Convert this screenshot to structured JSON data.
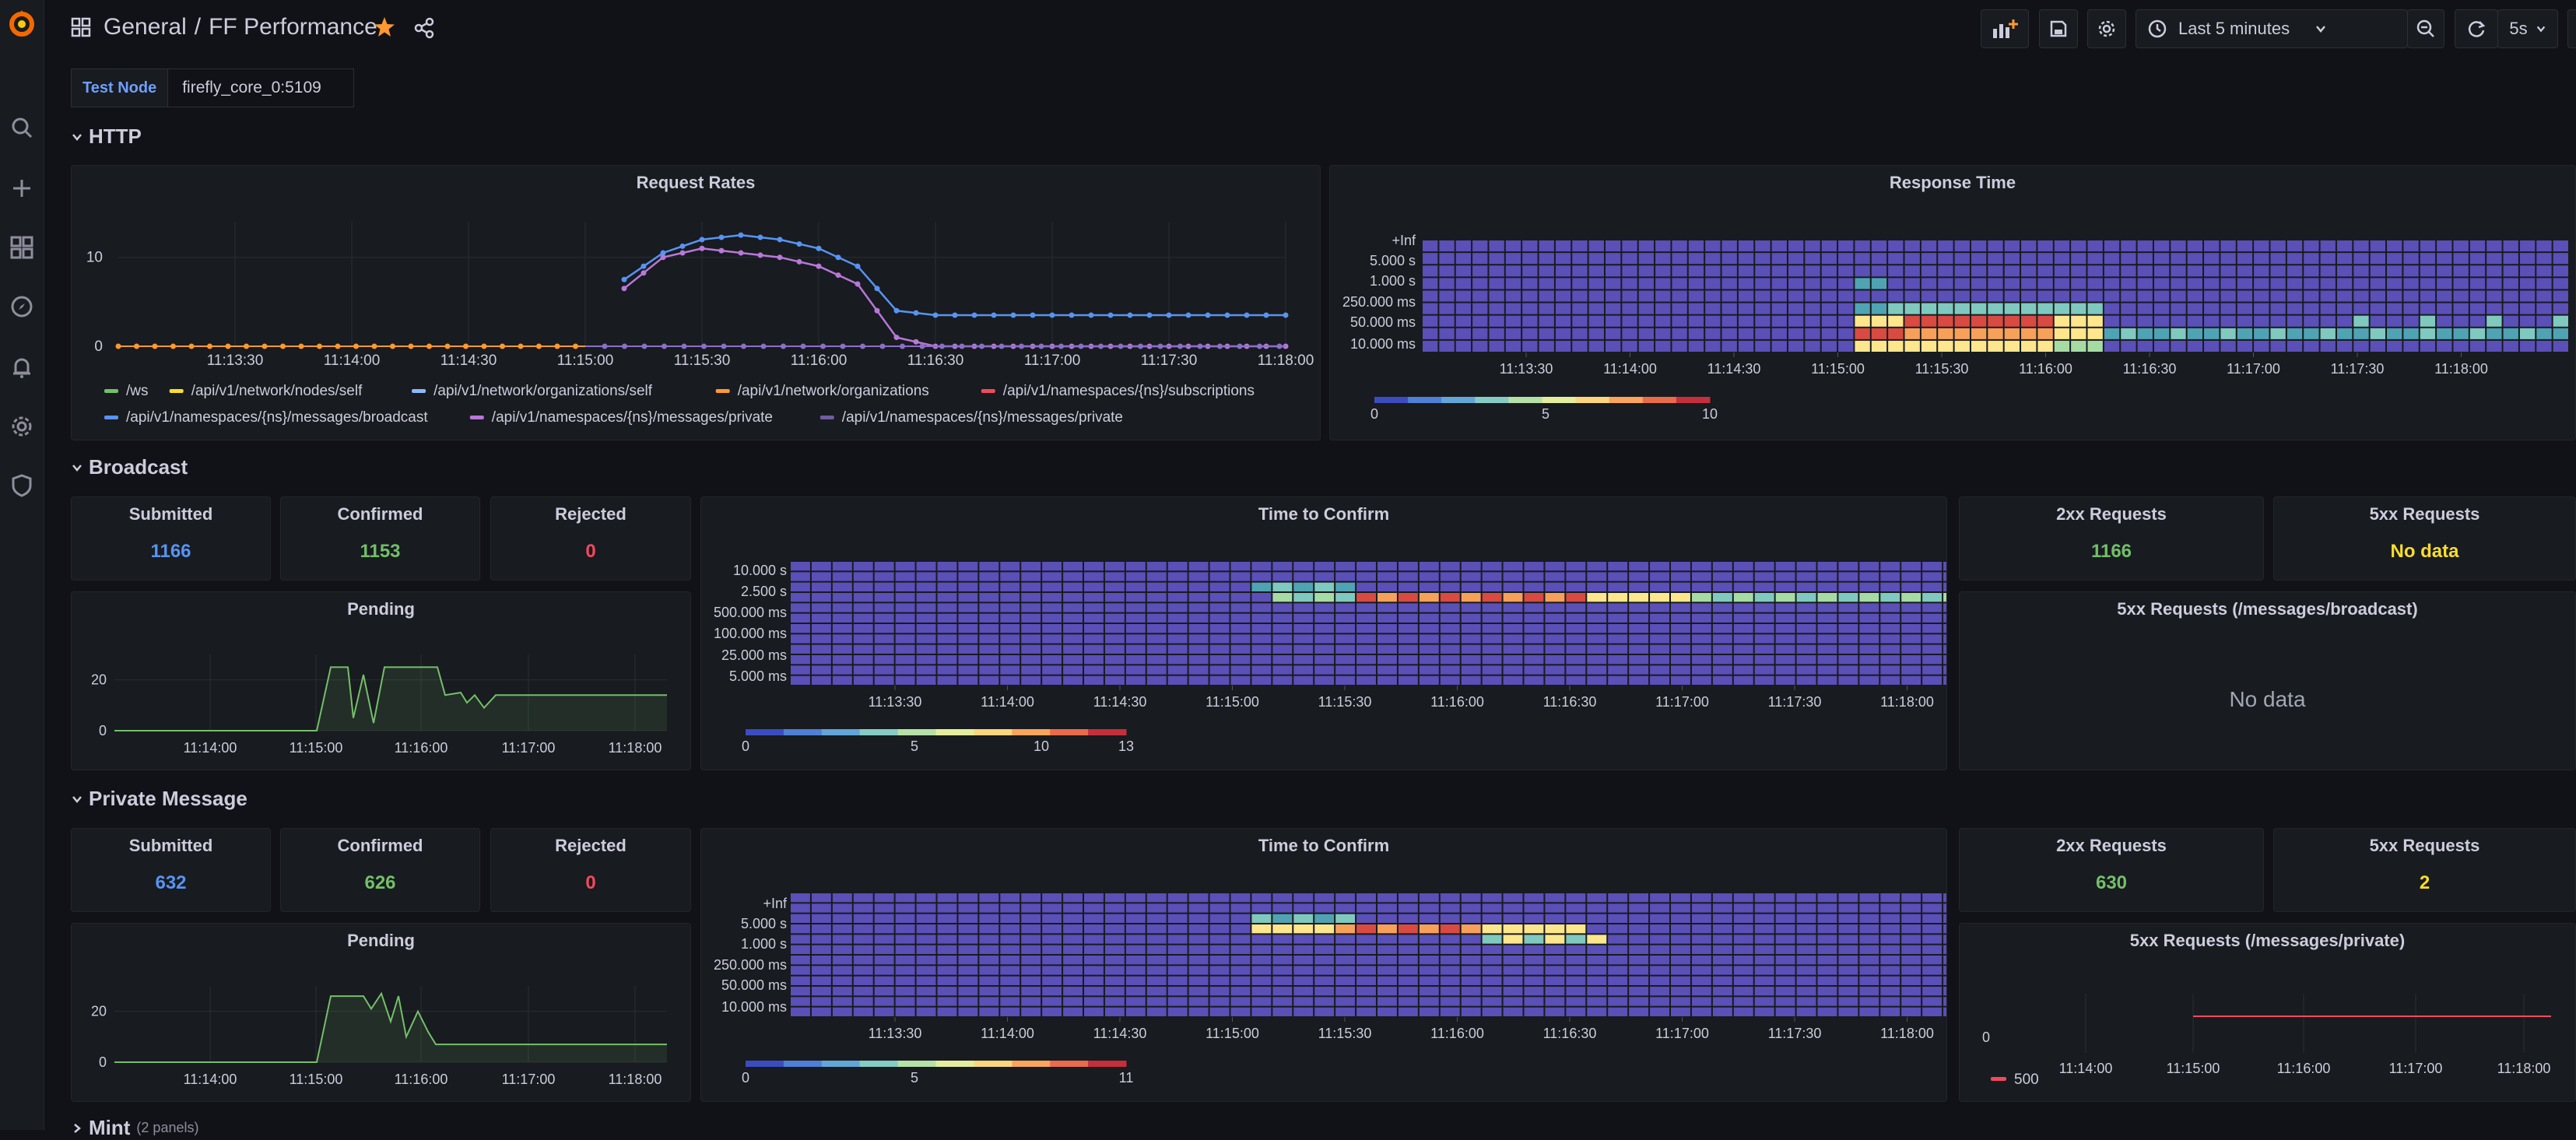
{
  "breadcrumb": {
    "folder": "General",
    "separator": "/",
    "dashboard": "FF Performance"
  },
  "toolbar": {
    "time_range": "Last 5 minutes",
    "refresh_interval": "5s"
  },
  "variable": {
    "label": "Test Node",
    "value": "firefly_core_0:5109"
  },
  "rows": {
    "http": "HTTP",
    "broadcast": "Broadcast",
    "private": "Private Message",
    "mint": "Mint",
    "mint_count": "(2 panels)"
  },
  "http": {
    "request_rates": {
      "title": "Request Rates",
      "y_ticks": [
        "0",
        "10"
      ]
    },
    "response_time": {
      "title": "Response Time",
      "y_ticks": [
        "+Inf",
        "5.000 s",
        "1.000 s",
        "250.000 ms",
        "50.000 ms",
        "10.000 ms"
      ],
      "scale_ticks": [
        "0",
        "5",
        "10"
      ]
    },
    "x_ticks": [
      "11:13:30",
      "11:14:00",
      "11:14:30",
      "11:15:00",
      "11:15:30",
      "11:16:00",
      "11:16:30",
      "11:17:00",
      "11:17:30",
      "11:18:00"
    ],
    "legend": [
      {
        "label": "/ws",
        "color": "#73bf69"
      },
      {
        "label": "/api/v1/network/nodes/self",
        "color": "#fade2a"
      },
      {
        "label": "/api/v1/network/organizations/self",
        "color": "#8ab8ff"
      },
      {
        "label": "/api/v1/network/organizations",
        "color": "#ff9830"
      },
      {
        "label": "/api/v1/namespaces/{ns}/subscriptions",
        "color": "#f2495c"
      },
      {
        "label": "/api/v1/namespaces/{ns}/messages/broadcast",
        "color": "#5794f2"
      },
      {
        "label": "/api/v1/namespaces/{ns}/messages/private",
        "color": "#b877d9"
      },
      {
        "label": "/api/v1/namespaces/{ns}/messages/private",
        "color": "#705da0"
      }
    ]
  },
  "broadcast": {
    "submitted": {
      "title": "Submitted",
      "value": "1166"
    },
    "confirmed": {
      "title": "Confirmed",
      "value": "1153"
    },
    "rejected": {
      "title": "Rejected",
      "value": "0"
    },
    "pending": {
      "title": "Pending",
      "y_ticks": [
        "0",
        "20"
      ],
      "x_ticks": [
        "11:14:00",
        "11:15:00",
        "11:16:00",
        "11:17:00",
        "11:18:00"
      ]
    },
    "ttc": {
      "title": "Time to Confirm",
      "y_ticks": [
        "10.000 s",
        "2.500 s",
        "500.000 ms",
        "100.000 ms",
        "25.000 ms",
        "5.000 ms"
      ],
      "scale_ticks": [
        "0",
        "5",
        "10",
        "13"
      ]
    },
    "req2xx": {
      "title": "2xx Requests",
      "value": "1166"
    },
    "req5xx": {
      "title": "5xx Requests",
      "value": "No data"
    },
    "req5xx_panel": {
      "title": "5xx Requests (/messages/broadcast)",
      "empty": "No data"
    }
  },
  "private": {
    "submitted": {
      "title": "Submitted",
      "value": "632"
    },
    "confirmed": {
      "title": "Confirmed",
      "value": "626"
    },
    "rejected": {
      "title": "Rejected",
      "value": "0"
    },
    "pending": {
      "title": "Pending",
      "y_ticks": [
        "0",
        "20"
      ],
      "x_ticks": [
        "11:14:00",
        "11:15:00",
        "11:16:00",
        "11:17:00",
        "11:18:00"
      ]
    },
    "ttc": {
      "title": "Time to Confirm",
      "y_ticks": [
        "+Inf",
        "5.000 s",
        "1.000 s",
        "250.000 ms",
        "50.000 ms",
        "10.000 ms"
      ],
      "scale_ticks": [
        "0",
        "5",
        "11"
      ]
    },
    "req2xx": {
      "title": "2xx Requests",
      "value": "630"
    },
    "req5xx": {
      "title": "5xx Requests",
      "value": "2"
    },
    "req5xx_panel": {
      "title": "5xx Requests (/messages/private)",
      "y_ticks": [
        "0"
      ],
      "x_ticks": [
        "11:14:00",
        "11:15:00",
        "11:16:00",
        "11:17:00",
        "11:18:00"
      ],
      "legend": "500"
    }
  },
  "colors": {
    "blue": "#5794f2",
    "green": "#73bf69",
    "red": "#f2495c",
    "yellow": "#fade2a",
    "orange": "#ff9830",
    "heat_bg": "#5b4fb8"
  },
  "chart_data": [
    {
      "type": "line",
      "title": "Request Rates",
      "x": [
        "11:13:30",
        "11:14:00",
        "11:14:30",
        "11:15:00",
        "11:15:10",
        "11:15:20",
        "11:15:30",
        "11:15:40",
        "11:15:50",
        "11:16:00",
        "11:16:10",
        "11:16:20",
        "11:16:30",
        "11:17:00",
        "11:17:30",
        "11:18:00"
      ],
      "series": [
        {
          "name": "/api/v1/namespaces/{ns}/messages/broadcast",
          "values": [
            null,
            null,
            null,
            null,
            7.5,
            10.5,
            12,
            12.5,
            12,
            11,
            9,
            4,
            3.5,
            3.5,
            3.5,
            3.5
          ]
        },
        {
          "name": "/api/v1/namespaces/{ns}/messages/private",
          "values": [
            null,
            null,
            null,
            null,
            6.5,
            10,
            11,
            10.5,
            10,
            9,
            7,
            1,
            0,
            0,
            0,
            0
          ]
        },
        {
          "name": "/api/v1/network/organizations",
          "values": [
            0,
            0,
            0,
            0,
            0,
            0,
            0,
            0,
            0,
            0,
            0,
            0,
            0,
            0,
            0,
            0
          ]
        }
      ],
      "ylim": [
        0,
        14
      ]
    },
    {
      "type": "heatmap",
      "title": "Response Time",
      "ylabels": [
        "+Inf",
        "5.000 s",
        "1.000 s",
        "250.000 ms",
        "50.000 ms",
        "10.000 ms"
      ],
      "scale": [
        0,
        10
      ]
    },
    {
      "type": "line",
      "title": "Pending",
      "x": [
        "11:14:00",
        "11:15:00",
        "11:15:10",
        "11:15:30",
        "11:16:00",
        "11:16:20",
        "11:17:00",
        "11:18:00"
      ],
      "series": [
        {
          "name": "",
          "values": [
            0,
            0,
            25,
            25,
            25,
            14,
            14,
            14
          ]
        }
      ],
      "ylim": [
        0,
        30
      ]
    },
    {
      "type": "heatmap",
      "title": "Time to Confirm",
      "ylabels": [
        "10.000 s",
        "2.500 s",
        "500.000 ms",
        "100.000 ms",
        "25.000 ms",
        "5.000 ms"
      ],
      "scale": [
        0,
        13
      ]
    },
    {
      "type": "line",
      "title": "Pending",
      "x": [
        "11:14:00",
        "11:15:00",
        "11:15:10",
        "11:15:30",
        "11:16:00",
        "11:16:20",
        "11:17:00",
        "11:18:00"
      ],
      "series": [
        {
          "name": "",
          "values": [
            0,
            0,
            25,
            25,
            20,
            7,
            7,
            7
          ]
        }
      ],
      "ylim": [
        0,
        30
      ]
    },
    {
      "type": "heatmap",
      "title": "Time to Confirm",
      "ylabels": [
        "+Inf",
        "5.000 s",
        "1.000 s",
        "250.000 ms",
        "50.000 ms",
        "10.000 ms"
      ],
      "scale": [
        0,
        11
      ]
    },
    {
      "type": "line",
      "title": "5xx Requests (/messages/private)",
      "x": [
        "11:15:00",
        "11:16:00",
        "11:17:00",
        "11:18:00"
      ],
      "series": [
        {
          "name": "500",
          "values": [
            1,
            1,
            1,
            1
          ]
        }
      ]
    }
  ]
}
